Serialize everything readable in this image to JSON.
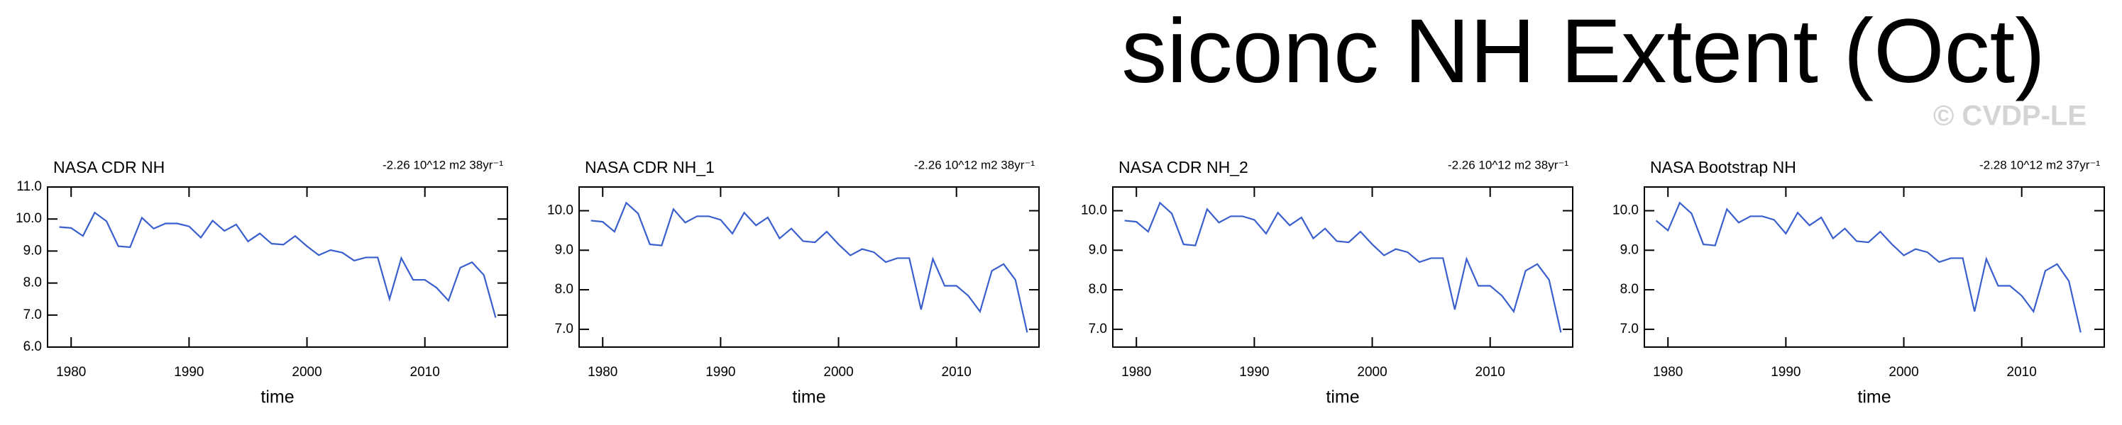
{
  "title": "siconc NH Extent (Oct)",
  "watermark": "© CVDP-LE",
  "chart_data": [
    {
      "type": "line",
      "title": "NASA CDR NH",
      "annotation": "-2.26 10^12 m2 38yr⁻¹",
      "x_label": "time",
      "x": [
        1979,
        1980,
        1981,
        1982,
        1983,
        1984,
        1985,
        1986,
        1987,
        1988,
        1989,
        1990,
        1991,
        1992,
        1993,
        1994,
        1995,
        1996,
        1997,
        1998,
        1999,
        2000,
        2001,
        2002,
        2003,
        2004,
        2005,
        2006,
        2007,
        2008,
        2009,
        2010,
        2011,
        2012,
        2013,
        2014,
        2015,
        2016
      ],
      "series": [
        {
          "color": "#3a5fcd",
          "values": [
            9.75,
            9.72,
            9.47,
            10.2,
            9.93,
            9.15,
            9.12,
            10.04,
            9.7,
            9.86,
            9.86,
            9.77,
            9.42,
            9.95,
            9.63,
            9.83,
            9.3,
            9.55,
            9.23,
            9.2,
            9.47,
            9.15,
            8.87,
            9.03,
            8.95,
            8.7,
            8.8,
            8.8,
            7.5,
            8.78,
            8.1,
            8.1,
            7.85,
            7.45,
            8.48,
            8.65,
            8.25,
            6.92
          ]
        }
      ],
      "xlim": [
        1978,
        2017
      ],
      "xticks": [
        1980,
        1990,
        2000,
        2010
      ],
      "ylim": [
        6,
        11
      ],
      "yticks": [
        {
          "value": 6,
          "label": "6.0"
        },
        {
          "value": 7,
          "label": "7.0"
        },
        {
          "value": 8,
          "label": "8.0"
        },
        {
          "value": 9,
          "label": "9.0"
        },
        {
          "value": 10,
          "label": "10.0"
        },
        {
          "value": 11,
          "label": "11.0"
        }
      ]
    },
    {
      "type": "line",
      "title": "NASA CDR NH_1",
      "annotation": "-2.26 10^12 m2 38yr⁻¹",
      "x_label": "time",
      "x": [
        1979,
        1980,
        1981,
        1982,
        1983,
        1984,
        1985,
        1986,
        1987,
        1988,
        1989,
        1990,
        1991,
        1992,
        1993,
        1994,
        1995,
        1996,
        1997,
        1998,
        1999,
        2000,
        2001,
        2002,
        2003,
        2004,
        2005,
        2006,
        2007,
        2008,
        2009,
        2010,
        2011,
        2012,
        2013,
        2014,
        2015,
        2016
      ],
      "series": [
        {
          "color": "#3a5fcd",
          "values": [
            9.75,
            9.72,
            9.47,
            10.2,
            9.93,
            9.15,
            9.12,
            10.04,
            9.7,
            9.86,
            9.86,
            9.77,
            9.42,
            9.95,
            9.63,
            9.83,
            9.3,
            9.55,
            9.23,
            9.2,
            9.47,
            9.15,
            8.87,
            9.03,
            8.95,
            8.7,
            8.8,
            8.8,
            7.5,
            8.78,
            8.1,
            8.1,
            7.85,
            7.45,
            8.48,
            8.65,
            8.25,
            6.92
          ]
        }
      ],
      "xlim": [
        1978,
        2017
      ],
      "xticks": [
        1980,
        1990,
        2000,
        2010
      ],
      "ylim": [
        6.55,
        10.6
      ],
      "yticks": [
        {
          "value": 7,
          "label": "7.0"
        },
        {
          "value": 8,
          "label": "8.0"
        },
        {
          "value": 9,
          "label": "9.0"
        },
        {
          "value": 10,
          "label": "10.0"
        }
      ]
    },
    {
      "type": "line",
      "title": "NASA CDR NH_2",
      "annotation": "-2.26 10^12 m2 38yr⁻¹",
      "x_label": "time",
      "x": [
        1979,
        1980,
        1981,
        1982,
        1983,
        1984,
        1985,
        1986,
        1987,
        1988,
        1989,
        1990,
        1991,
        1992,
        1993,
        1994,
        1995,
        1996,
        1997,
        1998,
        1999,
        2000,
        2001,
        2002,
        2003,
        2004,
        2005,
        2006,
        2007,
        2008,
        2009,
        2010,
        2011,
        2012,
        2013,
        2014,
        2015,
        2016
      ],
      "series": [
        {
          "color": "#3a5fcd",
          "values": [
            9.75,
            9.72,
            9.47,
            10.2,
            9.93,
            9.15,
            9.12,
            10.04,
            9.7,
            9.86,
            9.86,
            9.77,
            9.42,
            9.95,
            9.63,
            9.83,
            9.3,
            9.55,
            9.23,
            9.2,
            9.47,
            9.15,
            8.87,
            9.03,
            8.95,
            8.7,
            8.8,
            8.8,
            7.5,
            8.78,
            8.1,
            8.1,
            7.85,
            7.45,
            8.48,
            8.65,
            8.25,
            6.92
          ]
        }
      ],
      "xlim": [
        1978,
        2017
      ],
      "xticks": [
        1980,
        1990,
        2000,
        2010
      ],
      "ylim": [
        6.55,
        10.6
      ],
      "yticks": [
        {
          "value": 7,
          "label": "7.0"
        },
        {
          "value": 8,
          "label": "8.0"
        },
        {
          "value": 9,
          "label": "9.0"
        },
        {
          "value": 10,
          "label": "10.0"
        }
      ]
    },
    {
      "type": "line",
      "title": "NASA Bootstrap NH",
      "annotation": "-2.28 10^12 m2 37yr⁻¹",
      "x_label": "time",
      "x": [
        1979,
        1980,
        1981,
        1982,
        1983,
        1984,
        1985,
        1986,
        1987,
        1988,
        1989,
        1990,
        1991,
        1992,
        1993,
        1994,
        1995,
        1996,
        1997,
        1998,
        1999,
        2000,
        2001,
        2002,
        2003,
        2004,
        2005,
        2006,
        2007,
        2008,
        2009,
        2010,
        2011,
        2012,
        2013,
        2014,
        2015,
        2016
      ],
      "series": [
        {
          "color": "#3a5fcd",
          "values": [
            9.75,
            9.5,
            10.2,
            9.93,
            9.15,
            9.12,
            10.04,
            9.7,
            9.86,
            9.86,
            9.77,
            9.42,
            9.95,
            9.63,
            9.83,
            9.3,
            9.55,
            9.23,
            9.2,
            9.47,
            9.15,
            8.87,
            9.03,
            8.95,
            8.7,
            8.8,
            8.8,
            7.45,
            8.78,
            8.1,
            8.1,
            7.85,
            7.45,
            8.48,
            8.65,
            8.22,
            6.92,
            null
          ]
        }
      ],
      "xlim": [
        1978,
        2017
      ],
      "xticks": [
        1980,
        1990,
        2000,
        2010
      ],
      "ylim": [
        6.55,
        10.6
      ],
      "yticks": [
        {
          "value": 7,
          "label": "7.0"
        },
        {
          "value": 8,
          "label": "8.0"
        },
        {
          "value": 9,
          "label": "9.0"
        },
        {
          "value": 10,
          "label": "10.0"
        }
      ]
    }
  ]
}
